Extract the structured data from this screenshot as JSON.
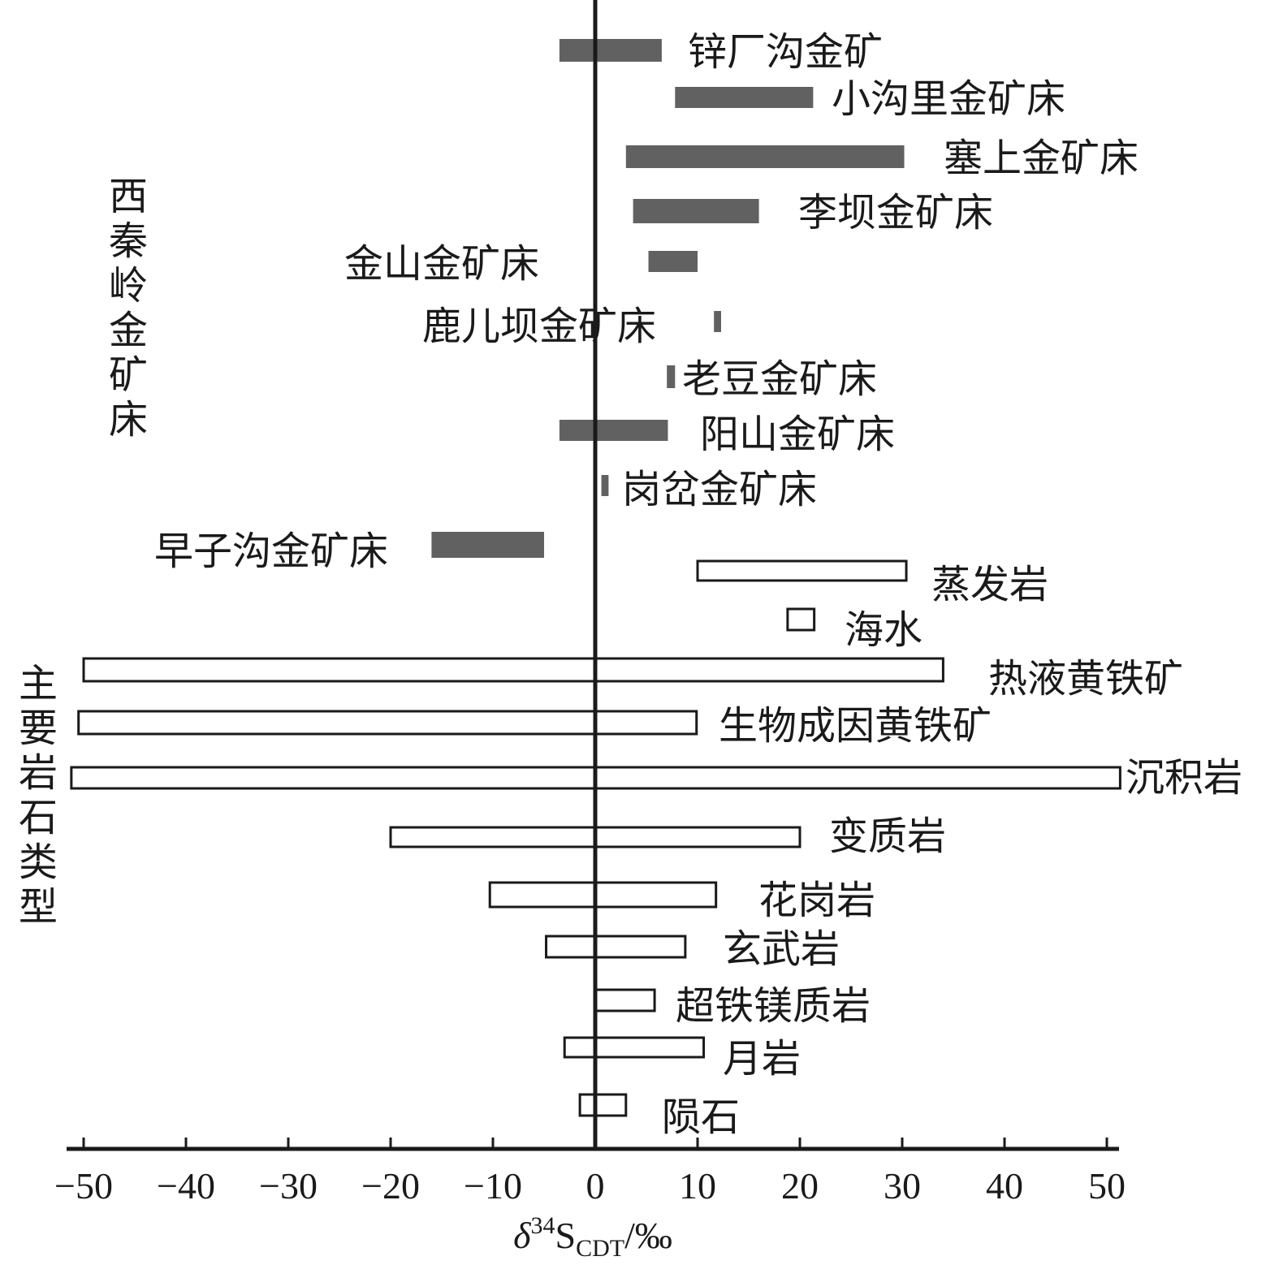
{
  "chart_data": {
    "type": "bar",
    "orientation": "horizontal-range",
    "xlabel": {
      "delta": "δ",
      "sup": "34",
      "main": "S",
      "sub": "CDT",
      "unit": "/‰"
    },
    "xlim": [
      -51.5,
      51.5
    ],
    "xticks": [
      "−50",
      "−40",
      "−30",
      "−20",
      "−10",
      "0",
      "10",
      "20",
      "30",
      "40",
      "50"
    ],
    "xtick_values": [
      -50,
      -40,
      -30,
      -20,
      -10,
      0,
      10,
      20,
      30,
      40,
      50
    ],
    "reference_line": 0,
    "groups": [
      {
        "name": "西秦岭金矿床",
        "fill": "#616161",
        "style": "solid"
      },
      {
        "name": "主要岩石类型",
        "fill": "#ffffff",
        "style": "outline"
      }
    ],
    "ranges": [
      {
        "label": "锌厂沟金矿",
        "group": 0,
        "min": -3.5,
        "max": 6.5,
        "label_side": "right"
      },
      {
        "label": "小沟里金矿床",
        "group": 0,
        "min": 7.8,
        "max": 21.3,
        "label_side": "right"
      },
      {
        "label": "塞上金矿床",
        "group": 0,
        "min": 3,
        "max": 30.2,
        "label_side": "right"
      },
      {
        "label": "李坝金矿床",
        "group": 0,
        "min": 3.7,
        "max": 16,
        "label_side": "right"
      },
      {
        "label": "金山金矿床",
        "group": 0,
        "min": 5.2,
        "max": 10,
        "label_side": "left"
      },
      {
        "label": "鹿儿坝金矿床",
        "group": 0,
        "min": 11.6,
        "max": 12.3,
        "label_side": "left"
      },
      {
        "label": "老豆金矿床",
        "group": 0,
        "min": 7,
        "max": 7.8,
        "label_side": "right"
      },
      {
        "label": "阳山金矿床",
        "group": 0,
        "min": -3.5,
        "max": 7.1,
        "label_side": "right"
      },
      {
        "label": "岗岔金矿床",
        "group": 0,
        "min": 0.6,
        "max": 1.3,
        "label_side": "right"
      },
      {
        "label": "早子沟金矿床",
        "group": 0,
        "min": -16,
        "max": -5,
        "label_side": "left"
      },
      {
        "label": "蒸发岩",
        "group": 1,
        "min": 10,
        "max": 30.4,
        "label_side": "right"
      },
      {
        "label": "海水",
        "group": 1,
        "min": 18.8,
        "max": 21.4,
        "label_side": "right"
      },
      {
        "label": "热液黄铁矿",
        "group": 1,
        "min": -50,
        "max": 34,
        "label_side": "right"
      },
      {
        "label": "生物成因黄铁矿",
        "group": 1,
        "min": -50.5,
        "max": 9.9,
        "label_side": "right"
      },
      {
        "label": "沉积岩",
        "group": 1,
        "min": -51.2,
        "max": 51.3,
        "label_side": "right"
      },
      {
        "label": "变质岩",
        "group": 1,
        "min": -20,
        "max": 20,
        "label_side": "right"
      },
      {
        "label": "花岗岩",
        "group": 1,
        "min": -10.3,
        "max": 11.8,
        "label_side": "right"
      },
      {
        "label": "玄武岩",
        "group": 1,
        "min": -4.8,
        "max": 8.8,
        "label_side": "right"
      },
      {
        "label": "超铁镁质岩",
        "group": 1,
        "min": 0,
        "max": 5.8,
        "label_side": "right"
      },
      {
        "label": "月岩",
        "group": 1,
        "min": -3,
        "max": 10.6,
        "label_side": "right"
      },
      {
        "label": "陨石",
        "group": 1,
        "min": -1.5,
        "max": 3
      }
    ]
  }
}
